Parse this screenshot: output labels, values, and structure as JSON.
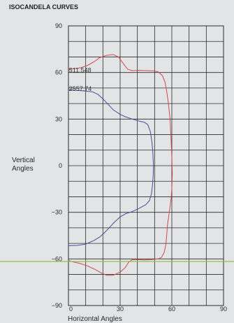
{
  "chart_data": {
    "type": "line",
    "title": "ISOCANDELA CURVES",
    "xlabel": "Horizontal Angles",
    "ylabel": [
      "Vertical",
      "Angles"
    ],
    "xlim": [
      0,
      90
    ],
    "ylim": [
      -90,
      90
    ],
    "x_ticks": [
      "0",
      "30",
      "60",
      "90"
    ],
    "y_ticks": [
      "90",
      "60",
      "30",
      "0",
      "−30",
      "−60",
      "−90"
    ],
    "grid": true,
    "annotations": [
      {
        "text": "511.548",
        "x": 0.3,
        "y": 61.5
      },
      {
        "text": "2557.74",
        "x": 0.3,
        "y": 49.5
      }
    ],
    "series": [
      {
        "color": "#d24a4a",
        "points": [
          [
            0,
            62
          ],
          [
            7,
            63
          ],
          [
            11,
            64.5
          ],
          [
            15,
            67
          ],
          [
            18,
            69.5
          ],
          [
            22,
            71
          ],
          [
            26,
            71.5
          ],
          [
            29,
            70
          ],
          [
            31,
            67
          ],
          [
            33,
            64
          ],
          [
            34.5,
            62
          ],
          [
            37,
            61.2
          ],
          [
            41,
            61.3
          ],
          [
            45,
            61.2
          ],
          [
            49,
            61
          ],
          [
            52,
            60.5
          ],
          [
            54.5,
            58
          ],
          [
            56,
            54
          ],
          [
            57,
            48
          ],
          [
            58,
            40
          ],
          [
            59,
            30
          ],
          [
            59.5,
            18
          ],
          [
            60,
            5
          ],
          [
            60.3,
            -5
          ],
          [
            60,
            -15
          ],
          [
            59.5,
            -22
          ],
          [
            58.5,
            -30
          ],
          [
            57.5,
            -38
          ],
          [
            57,
            -45
          ],
          [
            56.5,
            -51
          ],
          [
            55.5,
            -56
          ],
          [
            54,
            -59
          ],
          [
            52,
            -60
          ],
          [
            48,
            -60.5
          ],
          [
            44,
            -60.6
          ],
          [
            40,
            -60.5
          ],
          [
            37,
            -60.5
          ],
          [
            35,
            -62
          ],
          [
            33,
            -65.5
          ],
          [
            30,
            -68.5
          ],
          [
            26,
            -70.5
          ],
          [
            22,
            -70.5
          ],
          [
            19,
            -69
          ],
          [
            15,
            -66.5
          ],
          [
            11,
            -64.5
          ],
          [
            7,
            -63
          ],
          [
            3,
            -62
          ],
          [
            0,
            -61
          ]
        ]
      },
      {
        "color": "#4a4f9a",
        "points": [
          [
            0,
            49
          ],
          [
            5,
            48.5
          ],
          [
            10,
            48
          ],
          [
            14,
            47.5
          ],
          [
            17,
            46
          ],
          [
            20,
            43
          ],
          [
            23,
            39.5
          ],
          [
            26,
            36
          ],
          [
            30,
            33
          ],
          [
            33,
            31.5
          ],
          [
            37,
            30
          ],
          [
            41,
            28.7
          ],
          [
            44,
            28
          ],
          [
            46,
            26.5
          ],
          [
            47.5,
            22
          ],
          [
            48.5,
            15
          ],
          [
            49,
            8
          ],
          [
            49.3,
            0
          ],
          [
            49.2,
            -6
          ],
          [
            48.8,
            -12
          ],
          [
            48.2,
            -18
          ],
          [
            47,
            -22.5
          ],
          [
            45,
            -25
          ],
          [
            41,
            -27.5
          ],
          [
            37,
            -29.5
          ],
          [
            33,
            -31
          ],
          [
            30,
            -33
          ],
          [
            27,
            -36
          ],
          [
            24,
            -39.5
          ],
          [
            21,
            -43
          ],
          [
            18,
            -46
          ],
          [
            15,
            -48
          ],
          [
            10,
            -50.5
          ],
          [
            5,
            -51.3
          ],
          [
            0,
            -51.5
          ]
        ]
      }
    ]
  }
}
